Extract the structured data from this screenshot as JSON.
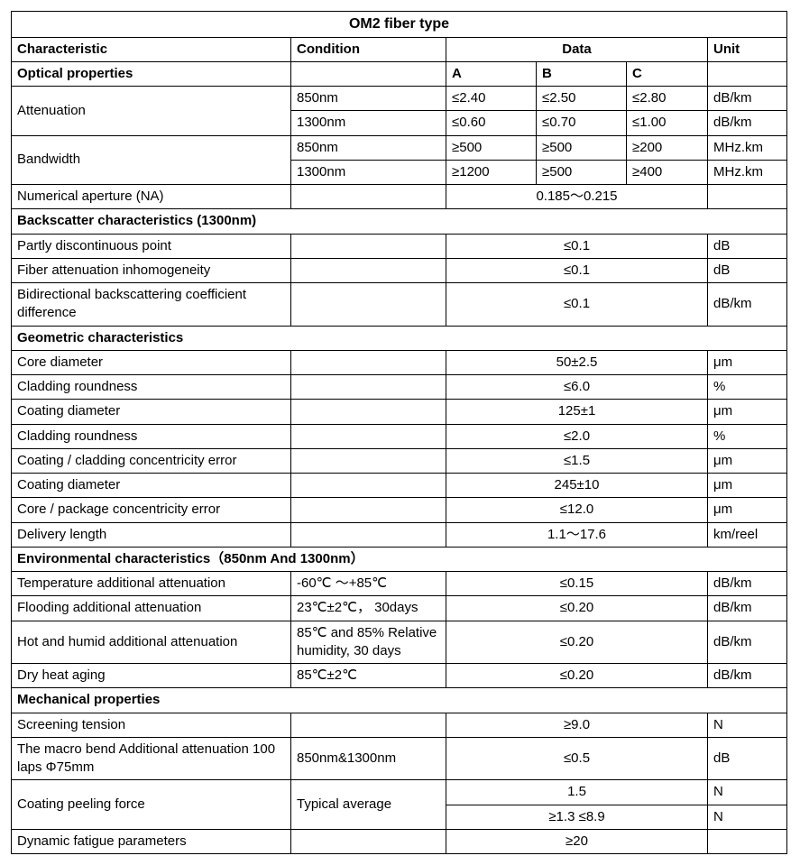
{
  "title": "OM2 fiber type",
  "headers": {
    "characteristic": "Characteristic",
    "condition": "Condition",
    "data": "Data",
    "unit": "Unit",
    "colA": "A",
    "colB": "B",
    "colC": "C"
  },
  "sections": {
    "optical": "Optical properties",
    "backscatter": "Backscatter characteristics (1300nm)",
    "geometric": "Geometric characteristics",
    "environmental": "Environmental characteristics（850nm And 1300nm）",
    "mechanical": "Mechanical properties"
  },
  "rows": {
    "attenuation": {
      "label": "Attenuation",
      "r1": {
        "cond": "850nm",
        "a": "≤2.40",
        "b": "≤2.50",
        "c": "≤2.80",
        "unit": "dB/km"
      },
      "r2": {
        "cond": "1300nm",
        "a": "≤0.60",
        "b": "≤0.70",
        "c": "≤1.00",
        "unit": "dB/km"
      }
    },
    "bandwidth": {
      "label": "Bandwidth",
      "r1": {
        "cond": "850nm",
        "a": "≥500",
        "b": "≥500",
        "c": "≥200",
        "unit": "MHz.km"
      },
      "r2": {
        "cond": "1300nm",
        "a": "≥1200",
        "b": "≥500",
        "c": "≥400",
        "unit": "MHz.km"
      }
    },
    "na": {
      "label": "Numerical aperture (NA)",
      "data": "0.185～0.215"
    },
    "partly_disc": {
      "label": "Partly discontinuous point",
      "data": "≤0.1",
      "unit": "dB"
    },
    "fiber_att_inhom": {
      "label": "Fiber attenuation inhomogeneity",
      "data": "≤0.1",
      "unit": "dB"
    },
    "bidir_backscatter": {
      "label": "Bidirectional backscattering coefficient difference",
      "data": "≤0.1",
      "unit": "dB/km"
    },
    "core_dia": {
      "label": "Core diameter",
      "data": "50±2.5",
      "unit": "μm"
    },
    "clad_round1": {
      "label": "Cladding roundness",
      "data": "≤6.0",
      "unit": "%"
    },
    "coat_dia1": {
      "label": "Coating diameter",
      "data": "125±1",
      "unit": "μm"
    },
    "clad_round2": {
      "label": "Cladding roundness",
      "data": "≤2.0",
      "unit": "%"
    },
    "coat_clad_conc": {
      "label": "Coating / cladding concentricity error",
      "data": "≤1.5",
      "unit": "μm"
    },
    "coat_dia2": {
      "label": "Coating diameter",
      "data": "245±10",
      "unit": "μm"
    },
    "core_pkg_conc": {
      "label": "Core / package concentricity error",
      "data": "≤12.0",
      "unit": "μm"
    },
    "delivery_len": {
      "label": "Delivery length",
      "data": "1.1～17.6",
      "unit": "km/reel"
    },
    "temp_att": {
      "label": "Temperature additional attenuation",
      "cond": "-60℃ ～+85℃",
      "data": "≤0.15",
      "unit": "dB/km"
    },
    "flood_att": {
      "label": "Flooding additional attenuation",
      "cond": "23℃±2℃， 30days",
      "data": "≤0.20",
      "unit": "dB/km"
    },
    "hot_humid": {
      "label": "Hot and humid additional attenuation",
      "cond": "85℃ and 85% Relative humidity, 30 days",
      "data": "≤0.20",
      "unit": "dB/km"
    },
    "dry_heat": {
      "label": "Dry heat aging",
      "cond": "85℃±2℃",
      "data": "≤0.20",
      "unit": "dB/km"
    },
    "screening": {
      "label": "Screening tension",
      "data": "≥9.0",
      "unit": "N"
    },
    "macro_bend": {
      "label": "The macro bend Additional attenuation 100 laps Φ75mm",
      "cond": "850nm&1300nm",
      "data": "≤0.5",
      "unit": "dB"
    },
    "peeling": {
      "label": "Coating peeling force",
      "cond": "Typical average",
      "r1": {
        "data": "1.5",
        "unit": "N"
      },
      "r2": {
        "data": "≥1.3  ≤8.9",
        "unit": "N"
      }
    },
    "dyn_fatigue": {
      "label": "Dynamic fatigue parameters",
      "data": "≥20"
    }
  }
}
